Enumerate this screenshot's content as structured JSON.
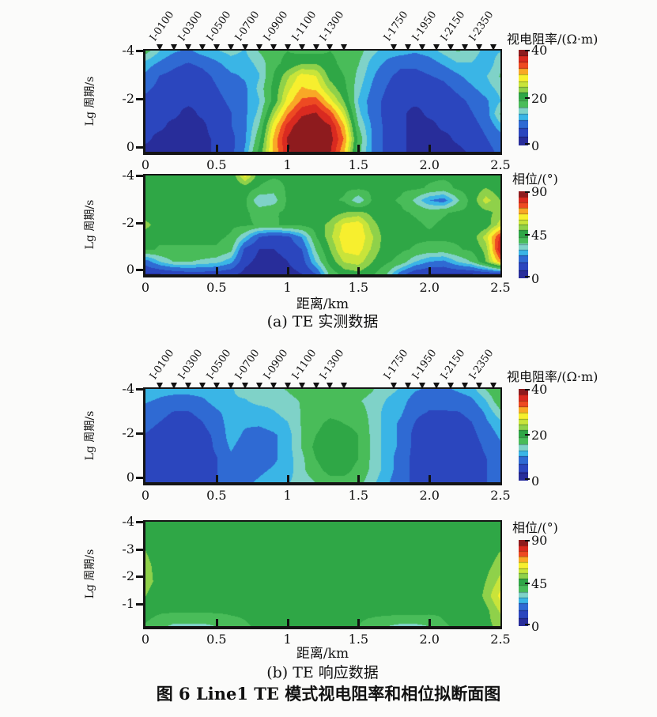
{
  "figure": {
    "caption": "图 6   Line1 TE 模式视电阻率和相位拟断面图",
    "sub_a": "(a) TE 实测数据",
    "sub_b": "(b) TE 响应数据",
    "xlabel": "距离/km",
    "ylabel": "Lg 周期/s",
    "res_cbar_title": "视电阻率/(Ω·m)",
    "phase_cbar_title": "相位/(°)"
  },
  "stations": {
    "labels": [
      "I-0100",
      "I-0300",
      "I-0500",
      "I-0700",
      "I-0900",
      "I-1100",
      "I-1300",
      "I-1750",
      "I-1950",
      "I-2150",
      "I-2350"
    ],
    "label_km": [
      0.1,
      0.3,
      0.5,
      0.7,
      0.9,
      1.1,
      1.3,
      1.75,
      1.95,
      2.15,
      2.35
    ],
    "marker_km": [
      0.1,
      0.2,
      0.3,
      0.4,
      0.5,
      0.6,
      0.7,
      0.8,
      0.9,
      1.0,
      1.1,
      1.2,
      1.3,
      1.4,
      1.75,
      1.85,
      1.95,
      2.05,
      2.15,
      2.25,
      2.35,
      2.45
    ]
  },
  "palette": {
    "bands": [
      [
        0.09,
        "#282d9a"
      ],
      [
        0.18,
        "#2b46be"
      ],
      [
        0.265,
        "#2f6ad3"
      ],
      [
        0.33,
        "#3ab5e6"
      ],
      [
        0.395,
        "#7fd2c8"
      ],
      [
        0.475,
        "#49bc59"
      ],
      [
        0.555,
        "#2fa746"
      ],
      [
        0.615,
        "#8fd14a"
      ],
      [
        0.672,
        "#c9e43a"
      ],
      [
        0.742,
        "#f7ef2e"
      ],
      [
        0.808,
        "#f9a826"
      ],
      [
        0.872,
        "#ee4a22"
      ],
      [
        0.94,
        "#d92a20"
      ],
      [
        1.01,
        "#8e1b1e"
      ]
    ]
  },
  "chart_data": [
    {
      "id": "a-resistivity",
      "type": "heatmap",
      "title": "(a) TE 实测数据 — 视电阻率",
      "xlabel": "距离/km",
      "ylabel": "Lg 周期/s",
      "x_range": [
        0,
        2.5
      ],
      "y_range": [
        -4,
        0.2
      ],
      "x_ticks": [
        "0",
        "0.5",
        "1",
        "1.5",
        "2.0",
        "2.5"
      ],
      "x_tick_vals": [
        0,
        0.5,
        1,
        1.5,
        2,
        2.5
      ],
      "y_ticks": [
        "-4",
        "-2",
        "0"
      ],
      "y_tick_vals": [
        -4,
        -2,
        0
      ],
      "colorbar": {
        "title": "视电阻率/(Ω·m)",
        "ticks": [
          "40",
          "20",
          "0"
        ],
        "tick_vals": [
          40,
          20,
          0
        ],
        "range": [
          0,
          40
        ]
      },
      "grid": [
        [
          17,
          13,
          11,
          10,
          12,
          13,
          14,
          13,
          16,
          18,
          19,
          18,
          18,
          19,
          18,
          17,
          14,
          12,
          12,
          11,
          12,
          14,
          16,
          15,
          12,
          13
        ],
        [
          12,
          10,
          8,
          7,
          8,
          10,
          12,
          12,
          14,
          18,
          20,
          22,
          22,
          20,
          18,
          16,
          12,
          10,
          8,
          8,
          9,
          11,
          13,
          13,
          11,
          15
        ],
        [
          10,
          7,
          6,
          5,
          6,
          8,
          10,
          11,
          13,
          19,
          24,
          28,
          27,
          21,
          19,
          15,
          11,
          8,
          6,
          6,
          7,
          8,
          10,
          12,
          13,
          16
        ],
        [
          8,
          6,
          5,
          4,
          5,
          7,
          9,
          10,
          14,
          20,
          26,
          30,
          29,
          24,
          20,
          14,
          10,
          7,
          5,
          5,
          5,
          6,
          8,
          10,
          12,
          14
        ],
        [
          6,
          5,
          4,
          4,
          4,
          6,
          8,
          10,
          13,
          20,
          28,
          33,
          34,
          28,
          22,
          13,
          9,
          6,
          4,
          4,
          4,
          5,
          6,
          8,
          10,
          13
        ],
        [
          5,
          4,
          4,
          3,
          4,
          5,
          7,
          10,
          14,
          24,
          32,
          37,
          38,
          34,
          26,
          14,
          9,
          6,
          4,
          3,
          4,
          4,
          5,
          7,
          9,
          16
        ],
        [
          4,
          4,
          3,
          3,
          3,
          5,
          7,
          10,
          16,
          28,
          36,
          40,
          40,
          38,
          30,
          16,
          10,
          6,
          4,
          3,
          3,
          4,
          4,
          6,
          8,
          12
        ],
        [
          4,
          3,
          3,
          3,
          3,
          4,
          6,
          10,
          18,
          30,
          38,
          40,
          40,
          39,
          32,
          18,
          10,
          6,
          4,
          3,
          3,
          3,
          4,
          5,
          7,
          9
        ],
        [
          3,
          3,
          3,
          3,
          3,
          4,
          6,
          11,
          20,
          30,
          37,
          40,
          40,
          38,
          30,
          17,
          10,
          6,
          4,
          3,
          3,
          3,
          3,
          4,
          6,
          8
        ]
      ]
    },
    {
      "id": "a-phase",
      "type": "heatmap",
      "title": "(a) TE 实测数据 — 相位",
      "xlabel": "距离/km",
      "ylabel": "Lg 周期/s",
      "x_range": [
        0,
        2.5
      ],
      "y_range": [
        -4,
        0.2
      ],
      "x_ticks": [
        "0",
        "0.5",
        "1",
        "1.5",
        "2.0",
        "2.5"
      ],
      "x_tick_vals": [
        0,
        0.5,
        1,
        1.5,
        2,
        2.5
      ],
      "y_ticks": [
        "-4",
        "-2",
        "0"
      ],
      "y_tick_vals": [
        -4,
        -2,
        0
      ],
      "colorbar": {
        "title": "相位/(°)",
        "ticks": [
          "90",
          "45",
          "0"
        ],
        "tick_vals": [
          90,
          45,
          0
        ],
        "range": [
          0,
          90
        ]
      },
      "grid": [
        [
          44,
          44,
          44,
          44,
          44,
          44,
          44,
          62,
          46,
          44,
          44,
          44,
          44,
          44,
          44,
          44,
          44,
          44,
          44,
          44,
          44,
          44,
          44,
          44,
          44,
          44
        ],
        [
          44,
          44,
          44,
          44,
          44,
          44,
          44,
          46,
          42,
          38,
          44,
          44,
          44,
          44,
          44,
          44,
          44,
          44,
          44,
          44,
          42,
          40,
          44,
          46,
          50,
          46
        ],
        [
          44,
          44,
          44,
          44,
          44,
          44,
          44,
          44,
          30,
          32,
          44,
          44,
          44,
          44,
          42,
          30,
          44,
          44,
          42,
          34,
          24,
          20,
          34,
          46,
          58,
          50
        ],
        [
          46,
          44,
          44,
          44,
          44,
          44,
          44,
          44,
          40,
          42,
          44,
          44,
          44,
          46,
          50,
          52,
          48,
          44,
          44,
          42,
          40,
          42,
          44,
          44,
          48,
          52
        ],
        [
          52,
          46,
          44,
          44,
          44,
          44,
          44,
          44,
          42,
          42,
          44,
          44,
          46,
          52,
          62,
          64,
          52,
          46,
          44,
          44,
          42,
          44,
          44,
          44,
          46,
          58
        ],
        [
          46,
          44,
          44,
          44,
          44,
          44,
          42,
          30,
          16,
          12,
          14,
          24,
          42,
          54,
          64,
          65,
          56,
          46,
          44,
          44,
          44,
          44,
          44,
          46,
          58,
          80
        ],
        [
          44,
          42,
          42,
          42,
          42,
          42,
          38,
          14,
          8,
          8,
          10,
          16,
          36,
          50,
          62,
          63,
          54,
          46,
          44,
          42,
          40,
          40,
          42,
          44,
          52,
          84
        ],
        [
          20,
          30,
          36,
          36,
          34,
          32,
          26,
          10,
          6,
          6,
          8,
          12,
          30,
          46,
          56,
          58,
          50,
          44,
          40,
          30,
          24,
          22,
          30,
          36,
          50,
          70
        ],
        [
          8,
          8,
          10,
          12,
          12,
          12,
          10,
          6,
          5,
          5,
          6,
          8,
          16,
          38,
          46,
          48,
          44,
          36,
          20,
          10,
          8,
          8,
          8,
          8,
          10,
          12
        ]
      ]
    },
    {
      "id": "b-resistivity",
      "type": "heatmap",
      "title": "(b) TE 响应数据 — 视电阻率",
      "xlabel": "距离/km",
      "ylabel": "Lg 周期/s",
      "x_range": [
        0,
        2.5
      ],
      "y_range": [
        -4,
        0.2
      ],
      "x_ticks": [
        "0",
        "0.5",
        "1",
        "1.5",
        "2.0",
        "2.5"
      ],
      "x_tick_vals": [
        0,
        0.5,
        1,
        1.5,
        2,
        2.5
      ],
      "y_ticks": [
        "-4",
        "-2",
        "0"
      ],
      "y_tick_vals": [
        -4,
        -2,
        0
      ],
      "colorbar": {
        "title": "视电阻率/(Ω·m)",
        "ticks": [
          "40",
          "20",
          "0"
        ],
        "tick_vals": [
          40,
          20,
          0
        ],
        "range": [
          0,
          40
        ]
      },
      "grid": [
        [
          13,
          12,
          12,
          12,
          12,
          13,
          13,
          14,
          15,
          15,
          16,
          17,
          17,
          17,
          17,
          17,
          16,
          14,
          13,
          11,
          10,
          10,
          11,
          12,
          16,
          19
        ],
        [
          11,
          10,
          9,
          9,
          10,
          12,
          13,
          13,
          14,
          14,
          15,
          16,
          17,
          17,
          17,
          16,
          15,
          13,
          12,
          9,
          8,
          8,
          9,
          10,
          13,
          18
        ],
        [
          9,
          8,
          7,
          7,
          8,
          10,
          12,
          12,
          12,
          13,
          14,
          16,
          17,
          18,
          18,
          17,
          15,
          12,
          11,
          8,
          7,
          7,
          7,
          8,
          11,
          15
        ],
        [
          8,
          7,
          6,
          6,
          7,
          9,
          12,
          11,
          11,
          12,
          13,
          16,
          18,
          20,
          19,
          18,
          15,
          12,
          10,
          7,
          5,
          5,
          6,
          7,
          10,
          12
        ],
        [
          7,
          6,
          5,
          5,
          6,
          8,
          12,
          10,
          9,
          10,
          12,
          16,
          19,
          21,
          21,
          19,
          15,
          12,
          10,
          6,
          5,
          4,
          5,
          6,
          9,
          11
        ],
        [
          6,
          5,
          5,
          4,
          5,
          8,
          11,
          9,
          9,
          10,
          12,
          16,
          20,
          22,
          21,
          19,
          15,
          12,
          10,
          6,
          5,
          4,
          4,
          5,
          8,
          10
        ],
        [
          6,
          5,
          4,
          4,
          5,
          7,
          10,
          9,
          9,
          10,
          12,
          15,
          19,
          21,
          21,
          19,
          15,
          12,
          9,
          6,
          5,
          4,
          4,
          5,
          7,
          10
        ],
        [
          5,
          5,
          4,
          4,
          5,
          7,
          10,
          9,
          10,
          11,
          12,
          15,
          18,
          20,
          20,
          18,
          15,
          12,
          9,
          6,
          5,
          4,
          4,
          5,
          7,
          9
        ],
        [
          5,
          4,
          4,
          4,
          5,
          7,
          10,
          10,
          11,
          12,
          13,
          14,
          16,
          18,
          18,
          17,
          14,
          11,
          9,
          6,
          5,
          4,
          4,
          5,
          7,
          9
        ]
      ]
    },
    {
      "id": "b-phase",
      "type": "heatmap",
      "title": "(b) TE 响应数据 — 相位",
      "xlabel": "距离/km",
      "ylabel": "Lg 周期/s",
      "x_range": [
        0,
        2.5
      ],
      "y_range": [
        -4,
        -0.2
      ],
      "x_ticks": [
        "0",
        "0.5",
        "1",
        "1.5",
        "2.0",
        "2.5"
      ],
      "x_tick_vals": [
        0,
        0.5,
        1,
        1.5,
        2,
        2.5
      ],
      "y_ticks": [
        "-4",
        "-3",
        "-2",
        "-1"
      ],
      "y_tick_vals": [
        -4,
        -3,
        -2,
        -1
      ],
      "colorbar": {
        "title": "相位/(°)",
        "ticks": [
          "90",
          "45",
          "0"
        ],
        "tick_vals": [
          90,
          45,
          0
        ],
        "range": [
          0,
          90
        ]
      },
      "grid": [
        [
          44,
          44,
          44,
          44,
          44,
          44,
          44,
          44,
          44,
          44,
          44,
          44,
          44,
          44,
          44,
          44,
          44,
          44,
          44,
          44,
          44,
          44,
          44,
          44,
          44,
          44
        ],
        [
          48,
          45,
          44,
          44,
          44,
          44,
          44,
          44,
          44,
          44,
          44,
          44,
          45,
          44,
          44,
          44,
          44,
          44,
          44,
          44,
          44,
          44,
          44,
          44,
          44,
          46
        ],
        [
          50,
          46,
          44,
          44,
          44,
          44,
          44,
          44,
          44,
          44,
          44,
          45,
          46,
          45,
          44,
          44,
          44,
          44,
          44,
          44,
          44,
          44,
          44,
          44,
          46,
          50
        ],
        [
          52,
          47,
          44,
          44,
          44,
          44,
          44,
          44,
          44,
          44,
          44,
          44,
          45,
          44,
          44,
          44,
          44,
          44,
          44,
          44,
          44,
          44,
          44,
          44,
          48,
          53
        ],
        [
          52,
          48,
          44,
          44,
          44,
          44,
          44,
          44,
          44,
          44,
          44,
          44,
          44,
          44,
          44,
          44,
          44,
          44,
          44,
          44,
          44,
          44,
          44,
          44,
          50,
          57
        ],
        [
          50,
          46,
          44,
          44,
          44,
          44,
          44,
          44,
          45,
          45,
          45,
          45,
          45,
          45,
          44,
          44,
          44,
          44,
          45,
          45,
          44,
          44,
          44,
          44,
          52,
          62
        ],
        [
          46,
          44,
          44,
          44,
          44,
          44,
          44,
          44,
          46,
          46,
          46,
          46,
          46,
          45,
          44,
          44,
          45,
          46,
          46,
          46,
          45,
          44,
          44,
          44,
          48,
          56
        ],
        [
          42,
          38,
          34,
          34,
          34,
          36,
          40,
          42,
          44,
          45,
          45,
          45,
          44,
          44,
          44,
          43,
          40,
          36,
          34,
          34,
          36,
          42,
          44,
          45,
          48,
          52
        ]
      ]
    }
  ]
}
